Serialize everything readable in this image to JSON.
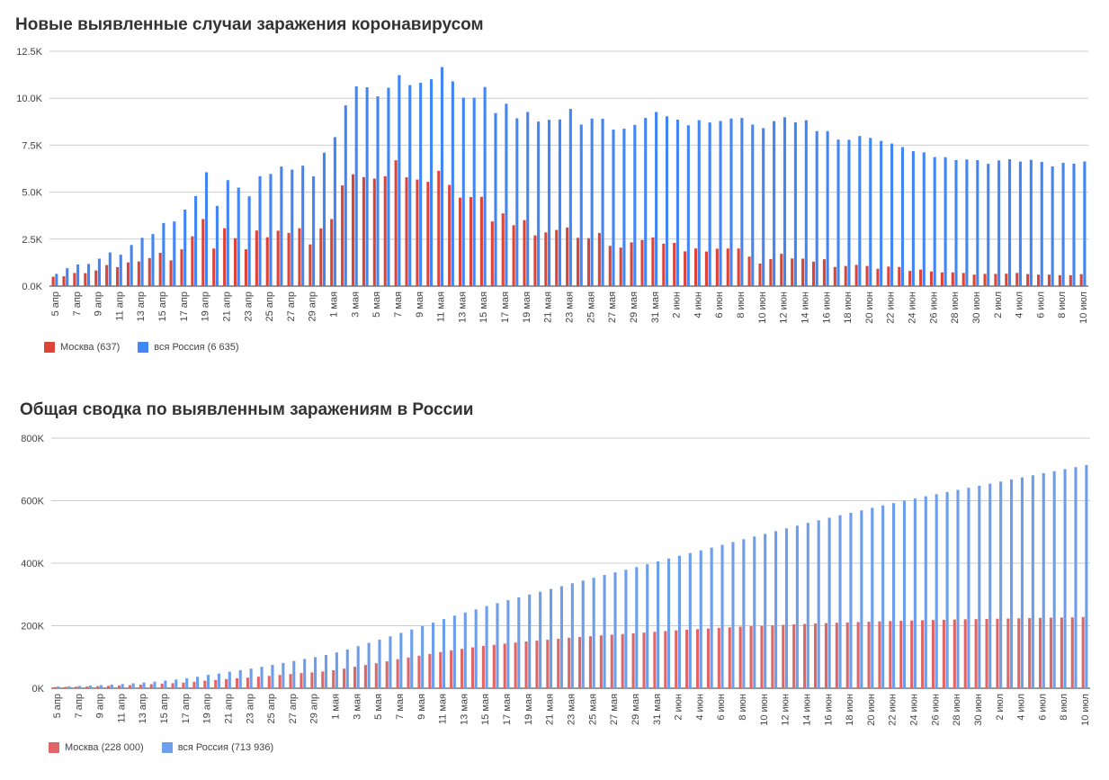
{
  "chart_data": [
    {
      "type": "bar",
      "title": "Новые выявленные случаи заражения коронавирусом",
      "categories": [
        "5 апр",
        "6 апр",
        "7 апр",
        "8 апр",
        "9 апр",
        "10 апр",
        "11 апр",
        "12 апр",
        "13 апр",
        "14 апр",
        "15 апр",
        "16 апр",
        "17 апр",
        "18 апр",
        "19 апр",
        "20 апр",
        "21 апр",
        "22 апр",
        "23 апр",
        "24 апр",
        "25 апр",
        "26 апр",
        "27 апр",
        "28 апр",
        "29 апр",
        "30 апр",
        "1 мая",
        "2 мая",
        "3 мая",
        "4 мая",
        "5 мая",
        "6 мая",
        "7 мая",
        "8 мая",
        "9 мая",
        "10 мая",
        "11 мая",
        "12 мая",
        "13 мая",
        "14 мая",
        "15 мая",
        "16 мая",
        "17 мая",
        "18 мая",
        "19 мая",
        "20 мая",
        "21 мая",
        "22 мая",
        "23 мая",
        "24 мая",
        "25 мая",
        "26 мая",
        "27 мая",
        "28 мая",
        "29 мая",
        "30 мая",
        "31 мая",
        "1 июн",
        "2 июн",
        "3 июн",
        "4 июн",
        "5 июн",
        "6 июн",
        "7 июн",
        "8 июн",
        "9 июн",
        "10 июн",
        "11 июн",
        "12 июн",
        "13 июн",
        "14 июн",
        "15 июн",
        "16 июн",
        "17 июн",
        "18 июн",
        "19 июн",
        "20 июн",
        "21 июн",
        "22 июн",
        "23 июн",
        "24 июн",
        "25 июн",
        "26 июн",
        "27 июн",
        "28 июн",
        "29 июн",
        "30 июн",
        "1 июл",
        "2 июл",
        "3 июл",
        "4 июл",
        "5 июл",
        "6 июл",
        "7 июл",
        "8 июл",
        "9 июл",
        "10 июл"
      ],
      "tick_every": 2,
      "series": [
        {
          "name": "Москва (637)",
          "color": "#db4437",
          "values": [
            500,
            520,
            700,
            690,
            830,
            1120,
            1010,
            1260,
            1310,
            1490,
            1770,
            1370,
            1960,
            2650,
            3570,
            2000,
            3080,
            2550,
            1960,
            2960,
            2600,
            2950,
            2830,
            3080,
            2220,
            3070,
            3570,
            5360,
            5950,
            5800,
            5720,
            5850,
            6700,
            5790,
            5670,
            5550,
            6140,
            5390,
            4710,
            4740,
            4750,
            3440,
            3870,
            3240,
            3510,
            2700,
            2860,
            2990,
            3120,
            2570,
            2550,
            2830,
            2140,
            2050,
            2330,
            2450,
            2590,
            2260,
            2300,
            1850,
            2000,
            1840,
            1990,
            2000,
            2000,
            1570,
            1200,
            1440,
            1720,
            1470,
            1460,
            1300,
            1430,
            1020,
            1070,
            1130,
            1070,
            920,
            1040,
            1020,
            810,
            880,
            780,
            730,
            730,
            700,
            610,
            650,
            650,
            660,
            700,
            640,
            610,
            610,
            580,
            580,
            637
          ]
        },
        {
          "name": "вся Россия (6 635)",
          "color": "#4285f4",
          "values": [
            650,
            950,
            1150,
            1180,
            1460,
            1790,
            1670,
            2190,
            2570,
            2770,
            3360,
            3440,
            4070,
            4790,
            6060,
            4270,
            5640,
            5240,
            4780,
            5850,
            5970,
            6360,
            6200,
            6410,
            5840,
            7100,
            7930,
            9620,
            10630,
            10580,
            10100,
            10560,
            11230,
            10700,
            10820,
            11010,
            11660,
            10900,
            10030,
            10030,
            10600,
            9210,
            9710,
            8930,
            9270,
            8760,
            8850,
            8870,
            9430,
            8600,
            8920,
            8910,
            8330,
            8380,
            8580,
            8950,
            9270,
            9040,
            8860,
            8560,
            8830,
            8710,
            8790,
            8920,
            8950,
            8600,
            8410,
            8780,
            8990,
            8720,
            8830,
            8250,
            8250,
            7800,
            7790,
            7990,
            7890,
            7730,
            7590,
            7400,
            7180,
            7120,
            6870,
            6860,
            6710,
            6740,
            6710,
            6510,
            6690,
            6750,
            6630,
            6720,
            6610,
            6370,
            6560,
            6520,
            6635
          ]
        }
      ],
      "yticks": [
        0,
        2500,
        5000,
        7500,
        10000,
        12500
      ],
      "ytick_labels": [
        "0.0K",
        "2.5K",
        "5.0K",
        "7.5K",
        "10.0K",
        "12.5K"
      ],
      "ylim": [
        0,
        12500
      ],
      "grid": true,
      "legend": "bottom-left"
    },
    {
      "type": "bar",
      "title": "Общая сводка по выявленным заражениям в России",
      "categories": [
        "5 апр",
        "6 апр",
        "7 апр",
        "8 апр",
        "9 апр",
        "10 апр",
        "11 апр",
        "12 апр",
        "13 апр",
        "14 апр",
        "15 апр",
        "16 апр",
        "17 апр",
        "18 апр",
        "19 апр",
        "20 апр",
        "21 апр",
        "22 апр",
        "23 апр",
        "24 апр",
        "25 апр",
        "26 апр",
        "27 апр",
        "28 апр",
        "29 апр",
        "30 апр",
        "1 мая",
        "2 мая",
        "3 мая",
        "4 мая",
        "5 мая",
        "6 мая",
        "7 мая",
        "8 мая",
        "9 мая",
        "10 мая",
        "11 мая",
        "12 мая",
        "13 мая",
        "14 мая",
        "15 мая",
        "16 мая",
        "17 мая",
        "18 мая",
        "19 мая",
        "20 мая",
        "21 мая",
        "22 мая",
        "23 мая",
        "24 мая",
        "25 мая",
        "26 мая",
        "27 мая",
        "28 мая",
        "29 мая",
        "30 мая",
        "31 мая",
        "1 июн",
        "2 июн",
        "3 июн",
        "4 июн",
        "5 июн",
        "6 июн",
        "7 июн",
        "8 июн",
        "9 июн",
        "10 июн",
        "11 июн",
        "12 июн",
        "13 июн",
        "14 июн",
        "15 июн",
        "16 июн",
        "17 июн",
        "18 июн",
        "19 июн",
        "20 июн",
        "21 июн",
        "22 июн",
        "23 июн",
        "24 июн",
        "25 июн",
        "26 июн",
        "27 июн",
        "28 июн",
        "29 июн",
        "30 июн",
        "1 июл",
        "2 июл",
        "3 июл",
        "4 июл",
        "5 июл",
        "6 июл",
        "7 июл",
        "8 июл",
        "9 июл",
        "10 июл"
      ],
      "tick_every": 2,
      "series": [
        {
          "name": "Москва (228 000)",
          "color": "#e06666",
          "values": [
            3900,
            4400,
            5100,
            5800,
            6700,
            7800,
            8800,
            10100,
            11500,
            13000,
            14800,
            16100,
            18100,
            20800,
            24300,
            26400,
            29400,
            31900,
            33900,
            36900,
            39500,
            42500,
            45300,
            48400,
            50600,
            53700,
            57300,
            62700,
            68600,
            74400,
            80100,
            86000,
            92700,
            98500,
            104200,
            109700,
            115900,
            121300,
            126000,
            130700,
            135500,
            138900,
            142800,
            146000,
            149600,
            152300,
            155100,
            158100,
            161200,
            163800,
            166300,
            169100,
            171300,
            173300,
            175600,
            178000,
            180600,
            182900,
            185200,
            187000,
            189000,
            190900,
            192900,
            194900,
            196900,
            198400,
            199600,
            201100,
            202800,
            204300,
            205700,
            207000,
            208500,
            209500,
            210600,
            211700,
            212800,
            213700,
            214800,
            215800,
            216600,
            217500,
            218300,
            219000,
            219800,
            220500,
            221100,
            221700,
            222400,
            223100,
            223800,
            224400,
            225000,
            225600,
            226200,
            226800,
            228000
          ]
        },
        {
          "name": "вся Россия (713 936)",
          "color": "#6d9eeb",
          "values": [
            5390,
            6340,
            7500,
            8670,
            10130,
            11920,
            13580,
            15770,
            18330,
            21100,
            24490,
            27930,
            32000,
            36790,
            42850,
            47120,
            52760,
            57990,
            62770,
            68620,
            74590,
            80950,
            87150,
            93560,
            99400,
            106500,
            114430,
            124050,
            134690,
            145270,
            155370,
            165930,
            177160,
            187860,
            198680,
            209690,
            221340,
            232240,
            242270,
            252240,
            262840,
            272040,
            281750,
            290680,
            299940,
            308700,
            317550,
            326450,
            335880,
            344480,
            353430,
            362340,
            370680,
            379050,
            387620,
            396580,
            405840,
            414880,
            423740,
            432280,
            441110,
            449830,
            458690,
            467670,
            476660,
            485250,
            493660,
            502440,
            511420,
            520130,
            528960,
            537210,
            545460,
            553300,
            561090,
            569060,
            576950,
            584680,
            592280,
            599700,
            606880,
            613990,
            620790,
            627650,
            634440,
            641160,
            647850,
            654400,
            661170,
            667880,
            674500,
            681250,
            687860,
            694230,
            700790,
            707300,
            713936
          ]
        }
      ],
      "yticks": [
        0,
        200000,
        400000,
        600000,
        800000
      ],
      "ytick_labels": [
        "0K",
        "200K",
        "400K",
        "600K",
        "800K"
      ],
      "ylim": [
        0,
        800000
      ],
      "grid": true,
      "legend": "bottom-left"
    }
  ]
}
